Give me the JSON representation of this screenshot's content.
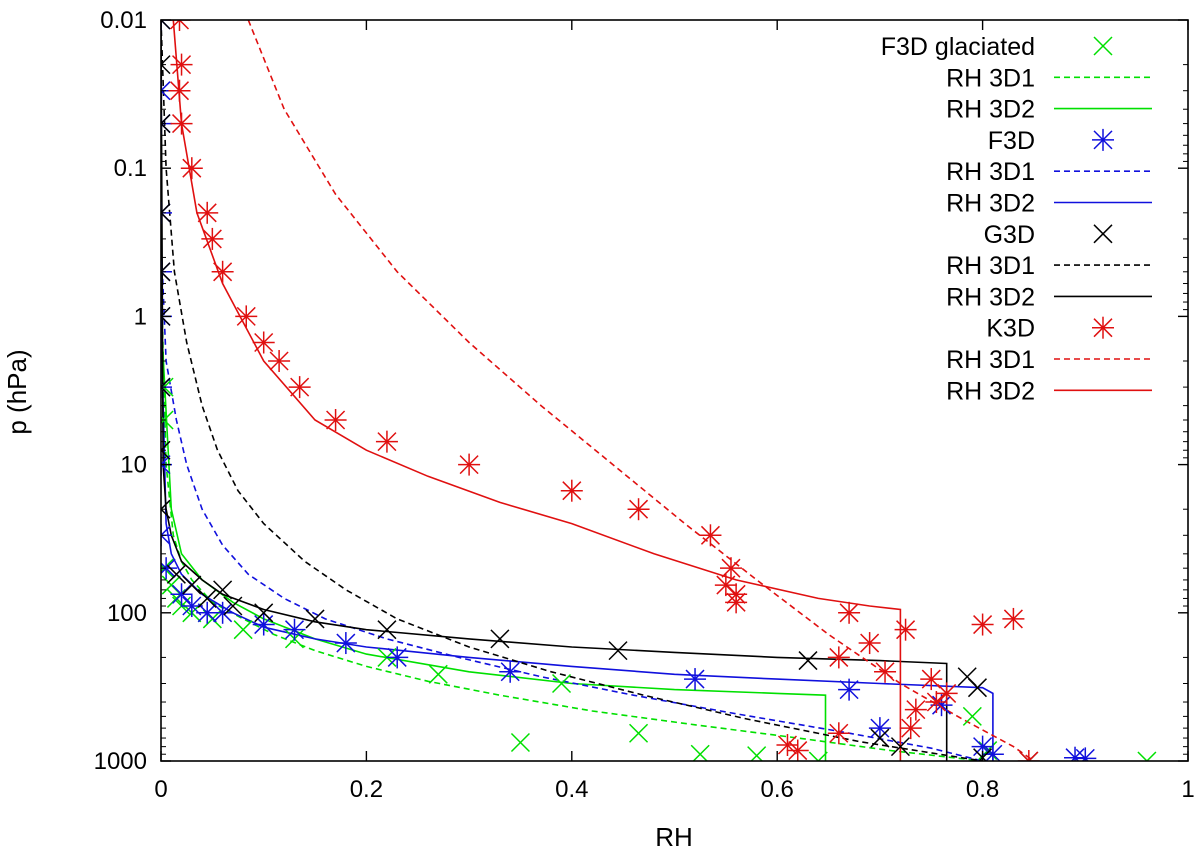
{
  "chart_data": {
    "type": "line",
    "xlabel": "RH",
    "ylabel": "p (hPa)",
    "xlim": [
      0,
      1
    ],
    "ylim": [
      1000,
      0.01
    ],
    "y_scale": "log",
    "y_reversed": true,
    "grid": false,
    "legend_position": "top-right",
    "x_ticks": [
      0,
      0.2,
      0.4,
      0.6,
      0.8,
      1
    ],
    "x_tick_labels": [
      "0",
      "0.2",
      "0.4",
      "0.6",
      "0.8",
      "1"
    ],
    "y_ticks": [
      0.01,
      0.1,
      1,
      10,
      100,
      1000
    ],
    "y_tick_labels": [
      "0.01",
      "0.1",
      "1",
      "10",
      "100",
      "1000"
    ],
    "colors": {
      "green": "#00e000",
      "blue": "#1010dd",
      "black": "#000000",
      "red": "#e01010"
    },
    "legend": [
      {
        "label": "F3D glaciated",
        "kind": "marker",
        "marker": "x",
        "color": "green"
      },
      {
        "label": "RH 3D1",
        "kind": "line",
        "dashed": true,
        "color": "green"
      },
      {
        "label": "RH 3D2",
        "kind": "line",
        "dashed": false,
        "color": "green"
      },
      {
        "label": "F3D",
        "kind": "marker",
        "marker": "star",
        "color": "blue"
      },
      {
        "label": "RH 3D1",
        "kind": "line",
        "dashed": true,
        "color": "blue"
      },
      {
        "label": "RH 3D2",
        "kind": "line",
        "dashed": false,
        "color": "blue"
      },
      {
        "label": "G3D",
        "kind": "marker",
        "marker": "x",
        "color": "black"
      },
      {
        "label": "RH 3D1",
        "kind": "line",
        "dashed": true,
        "color": "black"
      },
      {
        "label": "RH 3D2",
        "kind": "line",
        "dashed": false,
        "color": "black"
      },
      {
        "label": "K3D",
        "kind": "marker",
        "marker": "star",
        "color": "red"
      },
      {
        "label": "RH 3D1",
        "kind": "line",
        "dashed": true,
        "color": "red"
      },
      {
        "label": "RH 3D2",
        "kind": "line",
        "dashed": false,
        "color": "red"
      }
    ],
    "line_series": [
      {
        "name": "F3D glaciated RH 3D1",
        "color": "green",
        "dashed": true,
        "x": [
          0,
          0.005,
          0.012,
          0.02,
          0.03,
          0.05,
          0.08,
          0.11,
          0.15,
          0.2,
          0.26,
          0.33,
          0.42,
          0.52,
          0.62,
          0.71,
          0.8
        ],
        "y": [
          0.5,
          10,
          30,
          45,
          60,
          85,
          110,
          140,
          180,
          230,
          290,
          360,
          460,
          570,
          700,
          850,
          1000
        ]
      },
      {
        "name": "F3D glaciated RH 3D2",
        "color": "green",
        "dashed": false,
        "x": [
          0,
          0.01,
          0.02,
          0.04,
          0.07,
          0.1,
          0.15,
          0.2,
          0.3,
          0.4,
          0.5,
          0.6,
          0.647,
          0.647
        ],
        "y": [
          1,
          20,
          40,
          60,
          85,
          110,
          150,
          190,
          250,
          300,
          330,
          350,
          360,
          1000
        ]
      },
      {
        "name": "F3D RH 3D1",
        "color": "blue",
        "dashed": true,
        "x": [
          0,
          0.005,
          0.015,
          0.025,
          0.04,
          0.06,
          0.085,
          0.12,
          0.16,
          0.22,
          0.29,
          0.37,
          0.46,
          0.56,
          0.66,
          0.75,
          0.8
        ],
        "y": [
          0.3,
          2,
          5,
          10,
          20,
          35,
          55,
          80,
          110,
          150,
          200,
          270,
          360,
          480,
          630,
          820,
          1000
        ]
      },
      {
        "name": "F3D RH 3D2",
        "color": "blue",
        "dashed": false,
        "x": [
          0,
          0.005,
          0.01,
          0.02,
          0.04,
          0.07,
          0.1,
          0.15,
          0.2,
          0.3,
          0.4,
          0.5,
          0.6,
          0.7,
          0.8,
          0.81,
          0.81
        ],
        "y": [
          1,
          25,
          40,
          55,
          75,
          100,
          125,
          150,
          170,
          200,
          230,
          260,
          280,
          300,
          320,
          350,
          1000
        ]
      },
      {
        "name": "G3D RH 3D1",
        "color": "black",
        "dashed": true,
        "x": [
          0,
          0.005,
          0.013,
          0.025,
          0.04,
          0.055,
          0.075,
          0.1,
          0.14,
          0.18,
          0.23,
          0.3,
          0.38,
          0.47,
          0.57,
          0.68,
          0.8
        ],
        "y": [
          0.01,
          0.1,
          0.5,
          1.5,
          4,
          8,
          15,
          25,
          45,
          70,
          110,
          170,
          250,
          360,
          520,
          740,
          1000
        ]
      },
      {
        "name": "G3D RH 3D2",
        "color": "black",
        "dashed": false,
        "x": [
          0,
          0.002,
          0.005,
          0.01,
          0.02,
          0.04,
          0.06,
          0.1,
          0.15,
          0.2,
          0.3,
          0.4,
          0.5,
          0.6,
          0.7,
          0.765,
          0.765
        ],
        "y": [
          0.01,
          10,
          20,
          30,
          45,
          60,
          75,
          95,
          115,
          130,
          150,
          170,
          185,
          200,
          210,
          220,
          1000
        ]
      },
      {
        "name": "K3D RH 3D1",
        "color": "red",
        "dashed": true,
        "x": [
          0.085,
          0.12,
          0.17,
          0.23,
          0.3,
          0.37,
          0.44,
          0.51,
          0.58,
          0.65,
          0.72,
          0.78,
          0.83,
          0.85
        ],
        "y": [
          0.01,
          0.04,
          0.15,
          0.5,
          1.5,
          4,
          10,
          25,
          60,
          140,
          300,
          520,
          800,
          1000
        ]
      },
      {
        "name": "K3D RH 3D2",
        "color": "red",
        "dashed": false,
        "x": [
          0.012,
          0.02,
          0.035,
          0.06,
          0.1,
          0.15,
          0.2,
          0.26,
          0.33,
          0.4,
          0.48,
          0.56,
          0.64,
          0.69,
          0.72,
          0.72
        ],
        "y": [
          0.01,
          0.05,
          0.2,
          0.6,
          2,
          5,
          8,
          12,
          18,
          25,
          40,
          60,
          80,
          90,
          95,
          1000
        ]
      }
    ],
    "marker_series": [
      {
        "name": "F3D glaciated",
        "color": "green",
        "marker": "x",
        "x": [
          0.003,
          0.01,
          0.015,
          0.02,
          0.03,
          0.05,
          0.08,
          0.13,
          0.22,
          0.27,
          0.35,
          0.39,
          0.465,
          0.525,
          0.58,
          0.64,
          0.79,
          0.805,
          0.96,
          0.003,
          0.003
        ],
        "y": [
          50,
          65,
          80,
          90,
          100,
          110,
          130,
          150,
          200,
          260,
          750,
          300,
          650,
          900,
          920,
          1000,
          500,
          850,
          1000,
          3,
          5
        ]
      },
      {
        "name": "F3D",
        "color": "blue",
        "marker": "star",
        "x": [
          0,
          0,
          0,
          0,
          0,
          0,
          0,
          0,
          0,
          0.005,
          0.02,
          0.03,
          0.045,
          0.06,
          0.1,
          0.13,
          0.18,
          0.23,
          0.34,
          0.52,
          0.67,
          0.7,
          0.76,
          0.8,
          0.81,
          0.89,
          0.9
        ],
        "y": [
          0.01,
          0.03,
          0.05,
          0.2,
          0.5,
          1,
          3,
          10,
          30,
          50,
          75,
          90,
          100,
          100,
          120,
          130,
          160,
          200,
          250,
          280,
          330,
          600,
          420,
          800,
          900,
          950,
          960
        ]
      },
      {
        "name": "G3D",
        "color": "black",
        "marker": "x",
        "x": [
          0,
          0,
          0,
          0,
          0,
          0,
          0,
          0,
          0,
          0.015,
          0.03,
          0.045,
          0.06,
          0.07,
          0.1,
          0.15,
          0.22,
          0.33,
          0.445,
          0.63,
          0.7,
          0.72,
          0.785,
          0.795,
          0.8,
          0.845
        ],
        "y": [
          0.01,
          0.02,
          0.05,
          0.2,
          0.5,
          1,
          3,
          8,
          20,
          55,
          65,
          80,
          70,
          90,
          100,
          110,
          130,
          150,
          180,
          210,
          700,
          800,
          270,
          320,
          950,
          1000
        ]
      },
      {
        "name": "K3D",
        "color": "red",
        "marker": "star",
        "x": [
          0.018,
          0.02,
          0.018,
          0.02,
          0.03,
          0.045,
          0.05,
          0.06,
          0.083,
          0.1,
          0.115,
          0.135,
          0.17,
          0.22,
          0.3,
          0.4,
          0.465,
          0.535,
          0.555,
          0.55,
          0.56,
          0.56,
          0.67,
          0.66,
          0.69,
          0.705,
          0.725,
          0.73,
          0.75,
          0.765,
          0.8,
          0.83,
          0.61,
          0.62,
          0.66,
          0.735,
          0.755,
          0.845
        ],
        "y": [
          0.01,
          0.02,
          0.03,
          0.05,
          0.1,
          0.2,
          0.3,
          0.5,
          1,
          1.5,
          2,
          3,
          5,
          7,
          10,
          15,
          20,
          30,
          50,
          65,
          75,
          85,
          100,
          200,
          160,
          250,
          130,
          600,
          280,
          350,
          120,
          110,
          780,
          850,
          650,
          450,
          400,
          1000
        ]
      }
    ]
  }
}
